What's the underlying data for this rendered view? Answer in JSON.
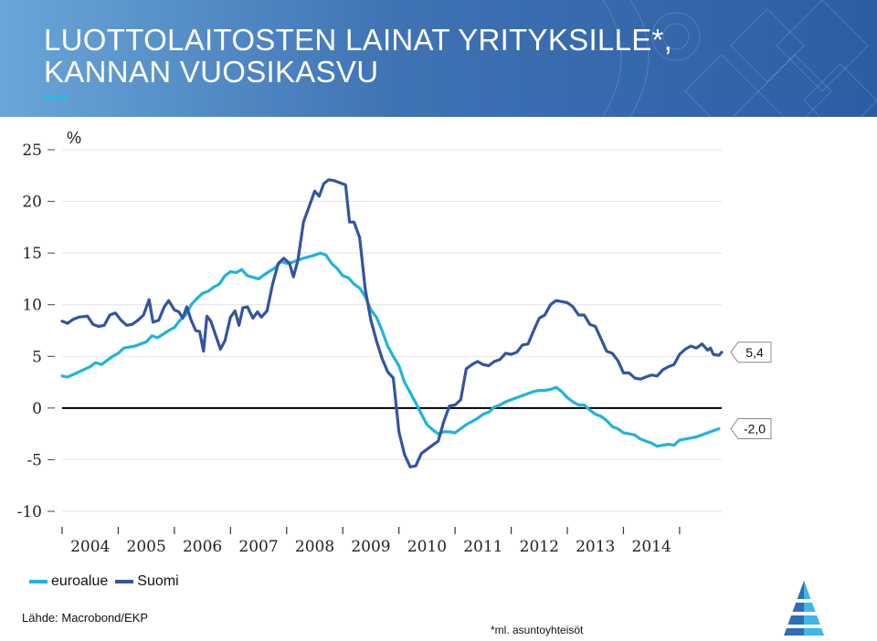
{
  "header": {
    "title_line1": "LUOTTOLAITOSTEN LAINAT YRITYKSILLE*,",
    "title_line2": "KANNAN VUOSIKASVU"
  },
  "colors": {
    "header_bg": "#3f73b4",
    "accent": "#2fb7e6",
    "euroalue": "#1fb3dc",
    "suomi": "#34559e",
    "zero_line": "#000000"
  },
  "legend": {
    "euroalue": "euroalue",
    "suomi": "Suomi"
  },
  "source": "Lähde: Macrobond/EKP",
  "footnote": "*ml. asuntoyhteisöt",
  "chart_data": {
    "type": "line",
    "title": "",
    "xlabel": "",
    "ylabel": "%",
    "xlim": [
      2003.0,
      2014.75
    ],
    "ylim": [
      -10,
      25
    ],
    "y_ticks": [
      "25",
      "20",
      "15",
      "10",
      "5",
      "0",
      "-5",
      "-10"
    ],
    "x_ticks": [
      "2004",
      "2005",
      "2006",
      "2007",
      "2008",
      "2009",
      "2010",
      "2011",
      "2012",
      "2013",
      "2014"
    ],
    "grid": true,
    "legend_position": "bottom-left",
    "end_labels": {
      "euroalue": "-2,0",
      "suomi": "5,4"
    },
    "series": [
      {
        "name": "euroalue",
        "points": [
          [
            2003.0,
            3.1
          ],
          [
            2003.1,
            3.0
          ],
          [
            2003.3,
            3.5
          ],
          [
            2003.5,
            4.0
          ],
          [
            2003.6,
            4.4
          ],
          [
            2003.7,
            4.2
          ],
          [
            2003.9,
            5.0
          ],
          [
            2004.0,
            5.3
          ],
          [
            2004.1,
            5.8
          ],
          [
            2004.3,
            6.0
          ],
          [
            2004.5,
            6.4
          ],
          [
            2004.6,
            7.0
          ],
          [
            2004.7,
            6.8
          ],
          [
            2004.9,
            7.5
          ],
          [
            2005.0,
            7.8
          ],
          [
            2005.1,
            8.5
          ],
          [
            2005.2,
            9.0
          ],
          [
            2005.3,
            10.0
          ],
          [
            2005.4,
            10.6
          ],
          [
            2005.5,
            11.1
          ],
          [
            2005.6,
            11.3
          ],
          [
            2005.7,
            11.7
          ],
          [
            2005.8,
            12.0
          ],
          [
            2005.9,
            12.8
          ],
          [
            2006.0,
            13.2
          ],
          [
            2006.1,
            13.1
          ],
          [
            2006.2,
            13.4
          ],
          [
            2006.3,
            12.8
          ],
          [
            2006.5,
            12.5
          ],
          [
            2006.6,
            12.9
          ],
          [
            2006.8,
            13.6
          ],
          [
            2006.9,
            14.2
          ],
          [
            2007.0,
            14.0
          ],
          [
            2007.1,
            14.1
          ],
          [
            2007.3,
            14.5
          ],
          [
            2007.5,
            14.8
          ],
          [
            2007.6,
            15.0
          ],
          [
            2007.7,
            14.8
          ],
          [
            2007.8,
            14.0
          ],
          [
            2007.9,
            13.5
          ],
          [
            2008.0,
            12.8
          ],
          [
            2008.1,
            12.6
          ],
          [
            2008.2,
            12.0
          ],
          [
            2008.3,
            11.6
          ],
          [
            2008.4,
            10.8
          ],
          [
            2008.5,
            9.5
          ],
          [
            2008.6,
            8.8
          ],
          [
            2008.7,
            7.5
          ],
          [
            2008.8,
            6.0
          ],
          [
            2008.9,
            5.0
          ],
          [
            2009.0,
            4.1
          ],
          [
            2009.1,
            2.5
          ],
          [
            2009.2,
            1.5
          ],
          [
            2009.3,
            0.5
          ],
          [
            2009.4,
            -0.6
          ],
          [
            2009.5,
            -1.6
          ],
          [
            2009.6,
            -2.1
          ],
          [
            2009.7,
            -2.5
          ],
          [
            2009.8,
            -2.3
          ],
          [
            2009.9,
            -2.3
          ],
          [
            2010.0,
            -2.4
          ],
          [
            2010.1,
            -2.0
          ],
          [
            2010.2,
            -1.6
          ],
          [
            2010.3,
            -1.3
          ],
          [
            2010.4,
            -1.0
          ],
          [
            2010.5,
            -0.6
          ],
          [
            2010.6,
            -0.4
          ],
          [
            2010.7,
            0.1
          ],
          [
            2010.8,
            0.3
          ],
          [
            2010.9,
            0.6
          ],
          [
            2011.0,
            0.8
          ],
          [
            2011.1,
            1.0
          ],
          [
            2011.2,
            1.2
          ],
          [
            2011.3,
            1.4
          ],
          [
            2011.4,
            1.6
          ],
          [
            2011.5,
            1.7
          ],
          [
            2011.6,
            1.7
          ],
          [
            2011.7,
            1.8
          ],
          [
            2011.8,
            2.0
          ],
          [
            2011.9,
            1.6
          ],
          [
            2012.0,
            1.0
          ],
          [
            2012.1,
            0.6
          ],
          [
            2012.2,
            0.3
          ],
          [
            2012.3,
            0.3
          ],
          [
            2012.4,
            -0.2
          ],
          [
            2012.5,
            -0.6
          ],
          [
            2012.6,
            -0.8
          ],
          [
            2012.7,
            -1.2
          ],
          [
            2012.8,
            -1.8
          ],
          [
            2012.9,
            -2.0
          ],
          [
            2013.0,
            -2.4
          ],
          [
            2013.1,
            -2.5
          ],
          [
            2013.2,
            -2.6
          ],
          [
            2013.3,
            -3.0
          ],
          [
            2013.4,
            -3.2
          ],
          [
            2013.5,
            -3.4
          ],
          [
            2013.6,
            -3.7
          ],
          [
            2013.7,
            -3.6
          ],
          [
            2013.8,
            -3.5
          ],
          [
            2013.9,
            -3.6
          ],
          [
            2014.0,
            -3.1
          ],
          [
            2014.1,
            -3.0
          ],
          [
            2014.2,
            -2.9
          ],
          [
            2014.3,
            -2.8
          ],
          [
            2014.4,
            -2.6
          ],
          [
            2014.5,
            -2.4
          ],
          [
            2014.6,
            -2.2
          ],
          [
            2014.7,
            -2.0
          ]
        ]
      },
      {
        "name": "Suomi",
        "points": [
          [
            2003.0,
            8.4
          ],
          [
            2003.1,
            8.2
          ],
          [
            2003.2,
            8.6
          ],
          [
            2003.3,
            8.8
          ],
          [
            2003.45,
            8.9
          ],
          [
            2003.55,
            8.1
          ],
          [
            2003.65,
            7.9
          ],
          [
            2003.75,
            8.0
          ],
          [
            2003.85,
            9.0
          ],
          [
            2003.95,
            9.2
          ],
          [
            2004.05,
            8.5
          ],
          [
            2004.15,
            8.0
          ],
          [
            2004.25,
            8.1
          ],
          [
            2004.35,
            8.5
          ],
          [
            2004.45,
            9.0
          ],
          [
            2004.55,
            10.5
          ],
          [
            2004.62,
            8.3
          ],
          [
            2004.72,
            8.5
          ],
          [
            2004.82,
            9.8
          ],
          [
            2004.9,
            10.4
          ],
          [
            2005.0,
            9.5
          ],
          [
            2005.08,
            9.3
          ],
          [
            2005.15,
            8.7
          ],
          [
            2005.22,
            9.8
          ],
          [
            2005.3,
            8.5
          ],
          [
            2005.38,
            7.5
          ],
          [
            2005.45,
            7.4
          ],
          [
            2005.52,
            5.5
          ],
          [
            2005.58,
            8.9
          ],
          [
            2005.65,
            8.4
          ],
          [
            2005.75,
            6.8
          ],
          [
            2005.82,
            5.7
          ],
          [
            2005.9,
            6.5
          ],
          [
            2006.0,
            8.8
          ],
          [
            2006.08,
            9.4
          ],
          [
            2006.15,
            8.0
          ],
          [
            2006.22,
            9.7
          ],
          [
            2006.3,
            9.8
          ],
          [
            2006.4,
            8.7
          ],
          [
            2006.48,
            9.3
          ],
          [
            2006.55,
            8.8
          ],
          [
            2006.65,
            9.4
          ],
          [
            2006.75,
            12.0
          ],
          [
            2006.85,
            14.0
          ],
          [
            2006.95,
            14.5
          ],
          [
            2007.05,
            14.0
          ],
          [
            2007.12,
            12.7
          ],
          [
            2007.2,
            14.3
          ],
          [
            2007.3,
            18.0
          ],
          [
            2007.4,
            19.5
          ],
          [
            2007.5,
            21.0
          ],
          [
            2007.58,
            20.5
          ],
          [
            2007.66,
            21.7
          ],
          [
            2007.75,
            22.1
          ],
          [
            2007.85,
            22.0
          ],
          [
            2007.95,
            21.8
          ],
          [
            2008.05,
            21.6
          ],
          [
            2008.12,
            18.0
          ],
          [
            2008.2,
            18.0
          ],
          [
            2008.3,
            16.5
          ],
          [
            2008.4,
            11.5
          ],
          [
            2008.5,
            8.5
          ],
          [
            2008.6,
            6.5
          ],
          [
            2008.7,
            4.8
          ],
          [
            2008.8,
            3.5
          ],
          [
            2008.9,
            2.9
          ],
          [
            2009.0,
            -2.3
          ],
          [
            2009.1,
            -4.5
          ],
          [
            2009.2,
            -5.7
          ],
          [
            2009.3,
            -5.6
          ],
          [
            2009.4,
            -4.4
          ],
          [
            2009.5,
            -4.0
          ],
          [
            2009.6,
            -3.6
          ],
          [
            2009.7,
            -3.2
          ],
          [
            2009.8,
            -1.3
          ],
          [
            2009.9,
            0.2
          ],
          [
            2010.0,
            0.3
          ],
          [
            2010.1,
            0.8
          ],
          [
            2010.2,
            3.8
          ],
          [
            2010.3,
            4.2
          ],
          [
            2010.4,
            4.5
          ],
          [
            2010.5,
            4.2
          ],
          [
            2010.6,
            4.1
          ],
          [
            2010.7,
            4.5
          ],
          [
            2010.8,
            4.7
          ],
          [
            2010.9,
            5.3
          ],
          [
            2011.0,
            5.2
          ],
          [
            2011.1,
            5.4
          ],
          [
            2011.2,
            6.1
          ],
          [
            2011.3,
            6.2
          ],
          [
            2011.4,
            7.5
          ],
          [
            2011.5,
            8.7
          ],
          [
            2011.6,
            9.0
          ],
          [
            2011.7,
            10.0
          ],
          [
            2011.8,
            10.4
          ],
          [
            2011.9,
            10.3
          ],
          [
            2012.0,
            10.2
          ],
          [
            2012.1,
            9.8
          ],
          [
            2012.2,
            9.0
          ],
          [
            2012.3,
            9.0
          ],
          [
            2012.4,
            8.1
          ],
          [
            2012.5,
            7.9
          ],
          [
            2012.6,
            6.7
          ],
          [
            2012.7,
            5.5
          ],
          [
            2012.8,
            5.3
          ],
          [
            2012.9,
            4.6
          ],
          [
            2013.0,
            3.4
          ],
          [
            2013.1,
            3.4
          ],
          [
            2013.2,
            2.9
          ],
          [
            2013.3,
            2.8
          ],
          [
            2013.4,
            3.0
          ],
          [
            2013.5,
            3.2
          ],
          [
            2013.6,
            3.1
          ],
          [
            2013.7,
            3.7
          ],
          [
            2013.8,
            4.0
          ],
          [
            2013.9,
            4.2
          ],
          [
            2014.0,
            5.2
          ],
          [
            2014.1,
            5.7
          ],
          [
            2014.2,
            6.0
          ],
          [
            2014.3,
            5.8
          ],
          [
            2014.4,
            6.2
          ],
          [
            2014.5,
            5.6
          ],
          [
            2014.55,
            5.8
          ],
          [
            2014.6,
            5.2
          ],
          [
            2014.7,
            5.1
          ],
          [
            2014.75,
            5.4
          ]
        ]
      }
    ]
  }
}
